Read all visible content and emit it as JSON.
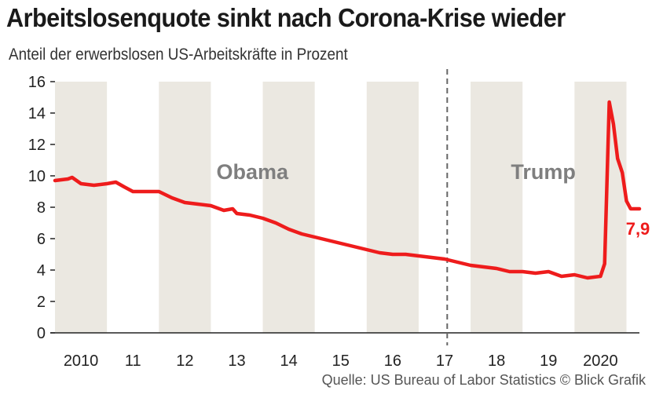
{
  "title": "Arbeitslosenquote sinkt nach Corona-Krise wieder",
  "subtitle": "Anteil der erwerbslosen US-Arbeitskräfte in Prozent",
  "source": "Quelle: US Bureau of Labor Statistics  © Blick Grafik",
  "colors": {
    "line": "#ee1c1c",
    "band": "#ebe8e1",
    "background": "#ffffff",
    "period_label": "#7f7f7f",
    "axis": "#222222"
  },
  "chart_data": {
    "type": "line",
    "ylim": [
      0,
      16
    ],
    "yticks": [
      "0",
      "2",
      "4",
      "6",
      "8",
      "10",
      "12",
      "14",
      "16"
    ],
    "x_range": [
      2009.5,
      2020.75
    ],
    "xtick_labels": [
      "2010",
      "11",
      "12",
      "13",
      "14",
      "15",
      "16",
      "17",
      "18",
      "19",
      "2020"
    ],
    "grid": "alternating year bands",
    "periods": [
      {
        "label": "Obama",
        "x": 2013.3
      },
      {
        "label": "Trump",
        "x": 2018.9
      }
    ],
    "divider_x": 2017.05,
    "end_label": "7,9",
    "series": [
      {
        "x": [
          2009.5,
          2009.75,
          2009.83,
          2010.0,
          2010.25,
          2010.5,
          2010.67,
          2010.83,
          2011.0,
          2011.25,
          2011.5,
          2011.75,
          2012.0,
          2012.25,
          2012.5,
          2012.75,
          2012.92,
          2013.0,
          2013.25,
          2013.5,
          2013.75,
          2014.0,
          2014.25,
          2014.5,
          2014.75,
          2015.0,
          2015.25,
          2015.5,
          2015.75,
          2016.0,
          2016.25,
          2016.5,
          2016.75,
          2017.0,
          2017.25,
          2017.5,
          2017.75,
          2018.0,
          2018.25,
          2018.5,
          2018.75,
          2019.0,
          2019.25,
          2019.5,
          2019.75,
          2020.0,
          2020.08,
          2020.17,
          2020.25,
          2020.33,
          2020.42,
          2020.5,
          2020.58,
          2020.67,
          2020.75
        ],
        "y": [
          9.7,
          9.8,
          9.9,
          9.5,
          9.4,
          9.5,
          9.6,
          9.3,
          9.0,
          9.0,
          9.0,
          8.6,
          8.3,
          8.2,
          8.1,
          7.8,
          7.9,
          7.6,
          7.5,
          7.3,
          7.0,
          6.6,
          6.3,
          6.1,
          5.9,
          5.7,
          5.5,
          5.3,
          5.1,
          5.0,
          5.0,
          4.9,
          4.8,
          4.7,
          4.5,
          4.3,
          4.2,
          4.1,
          3.9,
          3.9,
          3.8,
          3.9,
          3.6,
          3.7,
          3.5,
          3.6,
          4.4,
          14.7,
          13.3,
          11.1,
          10.2,
          8.4,
          7.9,
          7.9,
          7.9
        ]
      }
    ]
  }
}
